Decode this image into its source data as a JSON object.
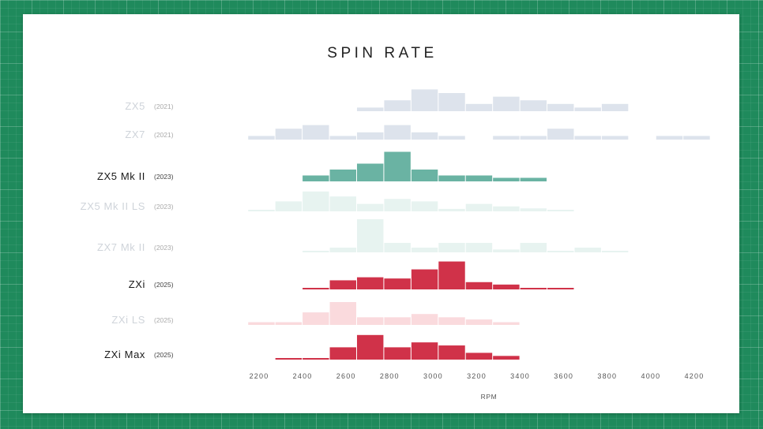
{
  "chart_data": {
    "type": "bar",
    "title": "SPIN RATE",
    "xlabel": "RPM",
    "x_ticks": [
      "2200",
      "2400",
      "2600",
      "2800",
      "3000",
      "3200",
      "3400",
      "3600",
      "3800",
      "4000",
      "4200"
    ],
    "bin_edges": [
      2150,
      2275,
      2400,
      2525,
      2650,
      2775,
      2900,
      3025,
      3150,
      3275,
      3400,
      3525,
      3650,
      3775,
      3900,
      4025,
      4150,
      4275
    ],
    "series": [
      {
        "name": "ZX5",
        "year": "(2021)",
        "emphasis": "faded",
        "color": "#dde3ec",
        "values": [
          0,
          0,
          0,
          0,
          1,
          3,
          6,
          5,
          2,
          4,
          3,
          2,
          1,
          2,
          0,
          0,
          0
        ]
      },
      {
        "name": "ZX7",
        "year": "(2021)",
        "emphasis": "faded",
        "color": "#dde3ec",
        "values": [
          1,
          3,
          4,
          1,
          2,
          4,
          2,
          1,
          0,
          1,
          1,
          3,
          1,
          1,
          0,
          1,
          1
        ]
      },
      {
        "name": "ZX5 Mk II",
        "year": "(2023)",
        "emphasis": "strong",
        "color": "#6ab3a3",
        "values": [
          0,
          0,
          1,
          2,
          3,
          5,
          2,
          1,
          1,
          0.6,
          0.6,
          0,
          0,
          0,
          0,
          0,
          0
        ]
      },
      {
        "name": "ZX5 Mk II LS",
        "year": "(2023)",
        "emphasis": "faded",
        "color": "#e7f3f0",
        "values": [
          0.3,
          2,
          4,
          3,
          1.5,
          2.5,
          2,
          0.5,
          1.5,
          1,
          0.6,
          0.3,
          0,
          0,
          0,
          0,
          0
        ]
      },
      {
        "name": "ZX7 Mk II",
        "year": "(2023)",
        "emphasis": "faded",
        "color": "#e7f3f0",
        "values": [
          0,
          0,
          0.2,
          1,
          7,
          2,
          1,
          2,
          2,
          0.6,
          2,
          0.3,
          1,
          0.3,
          0,
          0,
          0
        ]
      },
      {
        "name": "ZXi",
        "year": "(2025)",
        "emphasis": "strong",
        "color": "#d03249",
        "values": [
          0,
          0,
          0.2,
          1.5,
          2,
          1.8,
          3.3,
          4.6,
          1.2,
          0.8,
          0.2,
          0.2,
          0,
          0,
          0,
          0,
          0
        ]
      },
      {
        "name": "ZXi LS",
        "year": "(2025)",
        "emphasis": "faded",
        "color": "#fadadd",
        "values": [
          0.5,
          0.5,
          2.3,
          4.2,
          1.4,
          1.4,
          2,
          1.4,
          1,
          0.5,
          0,
          0,
          0,
          0,
          0,
          0,
          0
        ]
      },
      {
        "name": "ZXi Max",
        "year": "(2025)",
        "emphasis": "strong",
        "color": "#d03249",
        "values": [
          0,
          0.2,
          0.2,
          2,
          4,
          2,
          2.8,
          2.3,
          1.1,
          0.6,
          0,
          0,
          0,
          0,
          0,
          0,
          0
        ]
      }
    ]
  }
}
